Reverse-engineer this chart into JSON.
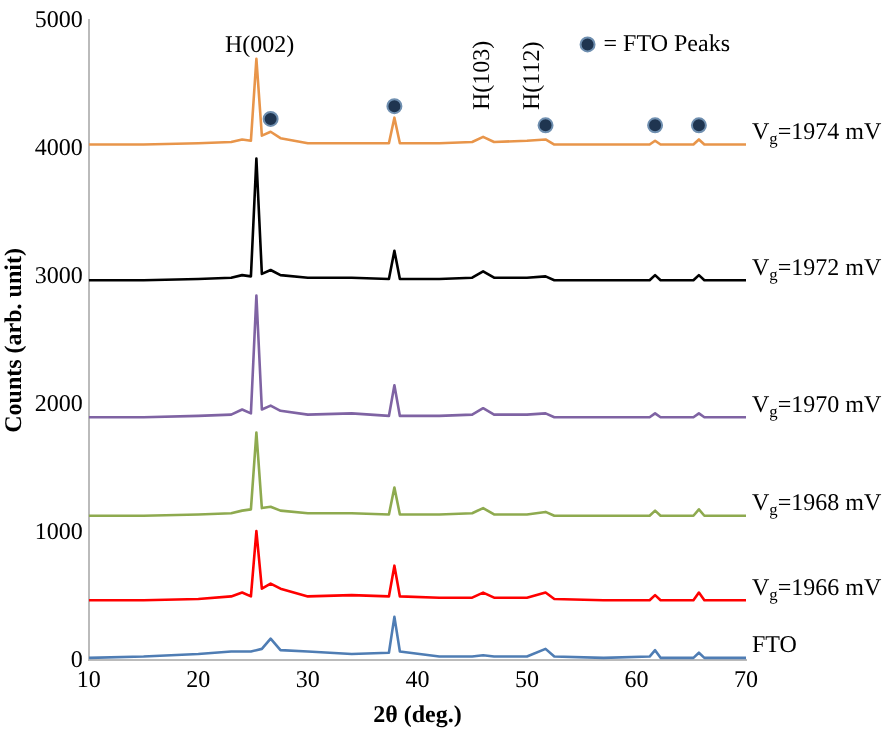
{
  "chart_data": {
    "type": "line",
    "xlabel": "2θ (deg.)",
    "ylabel": "Counts (arb. unit)",
    "x": [
      10,
      15,
      20,
      23,
      24,
      24.8,
      25.3,
      25.8,
      26.6,
      27.5,
      30,
      34,
      37.4,
      37.9,
      38.4,
      42,
      45,
      46,
      47,
      50,
      51.7,
      52.5,
      57,
      61.2,
      61.7,
      62.2,
      65.2,
      65.7,
      66.2,
      70
    ],
    "xlim": [
      10,
      70
    ],
    "xticks": [
      10,
      20,
      30,
      40,
      50,
      60,
      70
    ],
    "ylim": [
      0,
      5000
    ],
    "yticks": [
      0,
      1000,
      2000,
      3000,
      4000,
      5000
    ],
    "grid": false,
    "legend": "top right",
    "marker": "none",
    "line_style": "solid",
    "annotations": [
      "H(002)",
      "H(103)",
      "H(112)"
    ],
    "series": [
      {
        "name": "FTO",
        "color": "#4f7db4",
        "values": [
          20,
          30,
          50,
          70,
          70,
          70,
          80,
          90,
          170,
          80,
          70,
          50,
          60,
          340,
          70,
          30,
          30,
          40,
          30,
          30,
          90,
          30,
          20,
          30,
          80,
          20,
          20,
          60,
          20,
          20
        ]
      },
      {
        "name": "V$_{g}$=1966 mV",
        "color": "#ff0000",
        "values": [
          470,
          470,
          480,
          500,
          530,
          500,
          1010,
          560,
          600,
          560,
          500,
          510,
          500,
          740,
          500,
          490,
          490,
          530,
          490,
          490,
          530,
          480,
          470,
          470,
          510,
          470,
          470,
          530,
          470,
          470
        ]
      },
      {
        "name": "V$_{g}$=1968 mV",
        "color": "#8eaa4f",
        "values": [
          1130,
          1130,
          1140,
          1150,
          1170,
          1180,
          1780,
          1190,
          1200,
          1170,
          1150,
          1150,
          1140,
          1350,
          1140,
          1140,
          1150,
          1190,
          1140,
          1140,
          1160,
          1130,
          1130,
          1130,
          1170,
          1130,
          1130,
          1180,
          1130,
          1130
        ]
      },
      {
        "name": "V$_{g}$=1970 mV",
        "color": "#7f63a3",
        "values": [
          1900,
          1900,
          1910,
          1920,
          1960,
          1930,
          2850,
          1960,
          1990,
          1950,
          1920,
          1930,
          1910,
          2150,
          1910,
          1910,
          1920,
          1970,
          1920,
          1920,
          1930,
          1900,
          1900,
          1900,
          1930,
          1900,
          1900,
          1930,
          1900,
          1900
        ]
      },
      {
        "name": "V$_{g}$=1972 mV",
        "color": "#000000",
        "values": [
          2970,
          2970,
          2980,
          2990,
          3010,
          3000,
          3920,
          3020,
          3050,
          3010,
          2990,
          2990,
          2980,
          3200,
          2980,
          2980,
          2990,
          3040,
          2990,
          2990,
          3000,
          2970,
          2970,
          2970,
          3010,
          2970,
          2970,
          3010,
          2970,
          2970
        ]
      },
      {
        "name": "V$_{g}$=1974 mV",
        "color": "#e8954a",
        "values": [
          4030,
          4030,
          4040,
          4050,
          4070,
          4060,
          4700,
          4100,
          4130,
          4080,
          4040,
          4040,
          4040,
          4240,
          4040,
          4040,
          4050,
          4090,
          4050,
          4060,
          4070,
          4030,
          4030,
          4030,
          4060,
          4030,
          4030,
          4070,
          4030,
          4030
        ]
      },
      {
        "name": "= FTO Peaks",
        "type": "scatter",
        "marker": "circle",
        "color": "#1f3550",
        "x": [
          26.6,
          37.9,
          51.7,
          61.7,
          65.7
        ],
        "values": [
          4230,
          4330,
          4180,
          4180,
          4180
        ]
      }
    ]
  }
}
